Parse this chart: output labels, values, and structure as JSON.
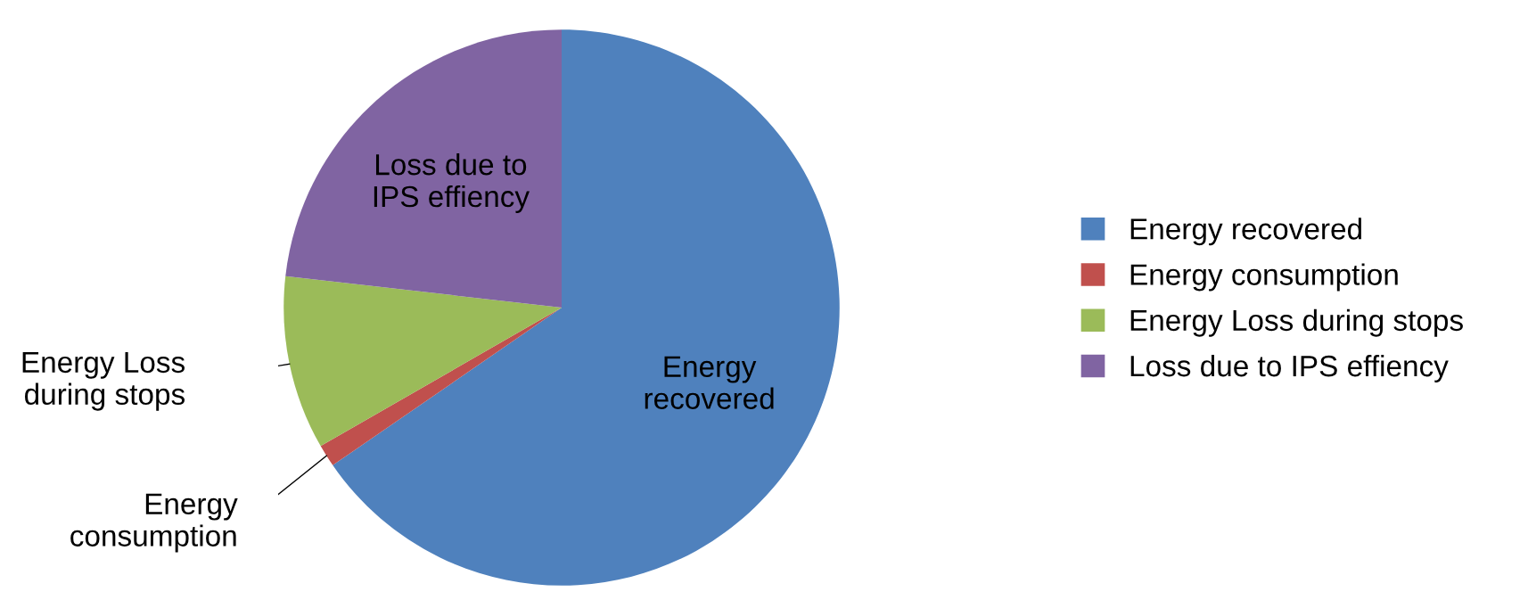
{
  "chart_data": {
    "type": "pie",
    "categories": [
      "Energy recovered",
      "Energy consumption",
      "Energy Loss during stops",
      "Loss due to IPS effiency"
    ],
    "values": [
      65.4,
      1.3,
      10.1,
      23.2
    ],
    "colors": [
      "#4f81bd",
      "#c0504d",
      "#9bbb59",
      "#8064a2"
    ],
    "legend": "right"
  }
}
